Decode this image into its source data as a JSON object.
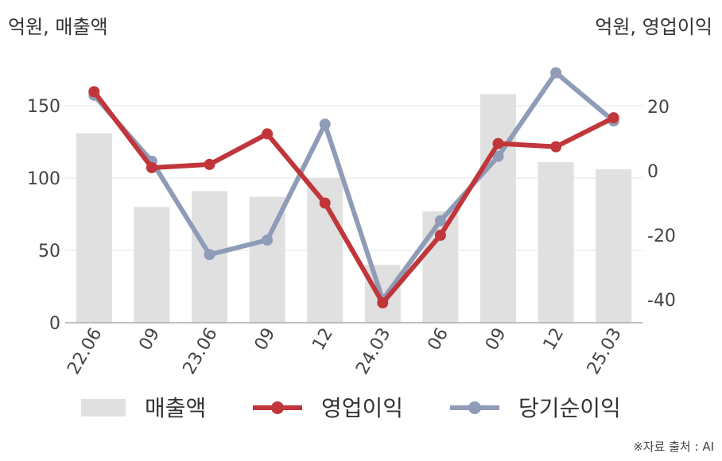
{
  "chart_data": {
    "type": "bar+line",
    "left_axis_label": "억원, 매출액",
    "right_axis_label": "억원, 영업이익",
    "categories": [
      "22.06",
      "09",
      "23.06",
      "09",
      "12",
      "24.03",
      "06",
      "09",
      "12",
      "25.03"
    ],
    "left_ylim": [
      0,
      180
    ],
    "left_ticks": [
      0,
      50,
      100,
      150
    ],
    "right_ylim": [
      -48,
      40
    ],
    "right_ticks": [
      -40,
      -20,
      0,
      20
    ],
    "series": [
      {
        "name": "매출액",
        "type": "bar",
        "axis": "left",
        "color": "#e0e0e0",
        "values": [
          131,
          80,
          91,
          87,
          100,
          40,
          77,
          158,
          111,
          106
        ]
      },
      {
        "name": "영업이익",
        "type": "line",
        "axis": "right",
        "color": "#c0363a",
        "values": [
          24.6,
          1,
          2,
          11.5,
          -10,
          -41,
          -20,
          8.5,
          7.5,
          16.5
        ]
      },
      {
        "name": "당기순이익",
        "type": "line",
        "axis": "right",
        "color": "#8f9cb7",
        "values": [
          23.5,
          3,
          -26,
          -21.5,
          14.5,
          -40,
          -15.5,
          4.5,
          30.5,
          15.5
        ]
      }
    ],
    "grid": true,
    "legend_position": "bottom"
  },
  "source": "※자료 출처 : AI"
}
